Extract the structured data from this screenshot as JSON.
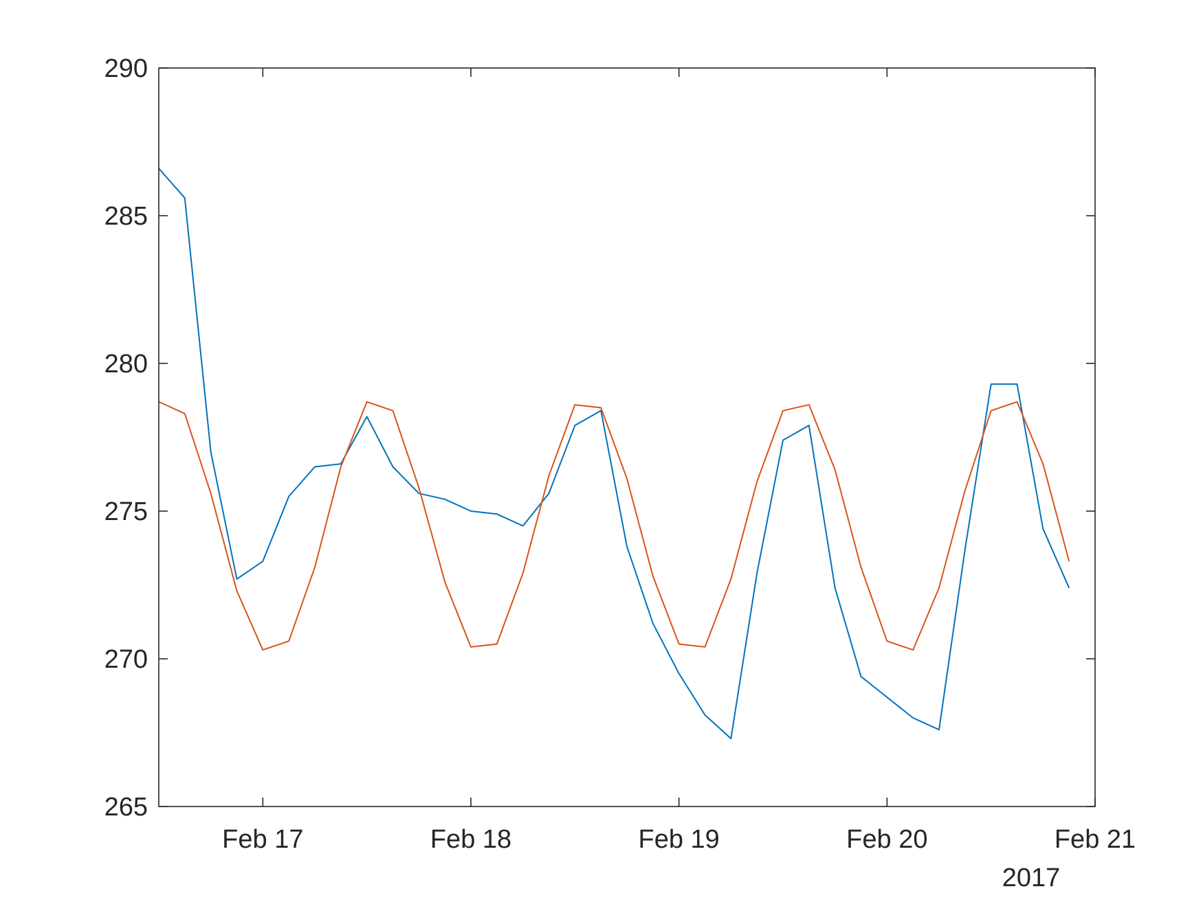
{
  "chart_data": {
    "type": "line",
    "title": "",
    "xlabel": "",
    "ylabel": "",
    "year_label": "2017",
    "xlim": [
      "2017-02-16 12:00",
      "2017-02-21 00:00"
    ],
    "ylim": [
      265,
      290
    ],
    "grid": false,
    "legend": "none",
    "xticks": [
      {
        "value": "2017-02-17 00:00",
        "label": "Feb 17"
      },
      {
        "value": "2017-02-18 00:00",
        "label": "Feb 18"
      },
      {
        "value": "2017-02-19 00:00",
        "label": "Feb 19"
      },
      {
        "value": "2017-02-20 00:00",
        "label": "Feb 20"
      },
      {
        "value": "2017-02-21 00:00",
        "label": "Feb 21"
      }
    ],
    "yticks": [
      {
        "value": 265,
        "label": "265"
      },
      {
        "value": 270,
        "label": "270"
      },
      {
        "value": 275,
        "label": "275"
      },
      {
        "value": 280,
        "label": "280"
      },
      {
        "value": 285,
        "label": "285"
      },
      {
        "value": 290,
        "label": "290"
      }
    ],
    "x": [
      "2017-02-16 12:00",
      "2017-02-16 15:00",
      "2017-02-16 18:00",
      "2017-02-16 21:00",
      "2017-02-17 00:00",
      "2017-02-17 03:00",
      "2017-02-17 06:00",
      "2017-02-17 09:00",
      "2017-02-17 12:00",
      "2017-02-17 15:00",
      "2017-02-17 18:00",
      "2017-02-17 21:00",
      "2017-02-18 00:00",
      "2017-02-18 03:00",
      "2017-02-18 06:00",
      "2017-02-18 09:00",
      "2017-02-18 12:00",
      "2017-02-18 15:00",
      "2017-02-18 18:00",
      "2017-02-18 21:00",
      "2017-02-19 00:00",
      "2017-02-19 03:00",
      "2017-02-19 06:00",
      "2017-02-19 09:00",
      "2017-02-19 12:00",
      "2017-02-19 15:00",
      "2017-02-19 18:00",
      "2017-02-19 21:00",
      "2017-02-20 00:00",
      "2017-02-20 03:00",
      "2017-02-20 06:00",
      "2017-02-20 09:00",
      "2017-02-20 12:00",
      "2017-02-20 15:00",
      "2017-02-20 18:00",
      "2017-02-20 21:00"
    ],
    "series": [
      {
        "color": "#0072BD",
        "values": [
          286.6,
          285.6,
          277.0,
          272.7,
          273.3,
          275.5,
          276.5,
          276.6,
          278.2,
          276.5,
          275.6,
          275.4,
          275.0,
          274.9,
          274.5,
          275.6,
          277.9,
          278.4,
          273.8,
          271.2,
          269.5,
          268.1,
          267.3,
          272.9,
          277.4,
          277.9,
          272.4,
          269.4,
          268.7,
          268.0,
          267.6,
          273.7,
          279.3,
          279.3,
          274.4,
          272.4
        ]
      },
      {
        "color": "#D95319",
        "values": [
          278.7,
          278.3,
          275.6,
          272.3,
          270.3,
          270.6,
          273.1,
          276.5,
          278.7,
          278.4,
          275.8,
          272.6,
          270.4,
          270.5,
          272.9,
          276.2,
          278.6,
          278.5,
          276.1,
          272.8,
          270.5,
          270.4,
          272.7,
          276.0,
          278.4,
          278.6,
          276.4,
          273.1,
          270.6,
          270.3,
          272.4,
          275.7,
          278.4,
          278.7,
          276.6,
          273.3
        ]
      }
    ]
  }
}
